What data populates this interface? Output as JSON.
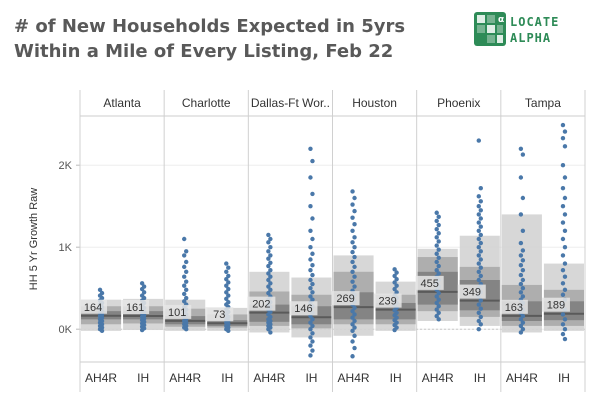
{
  "title_line1": "# of New Households Expected in 5yrs",
  "title_line2": "Within a Mile of Every Listing, Feb 22",
  "logo": {
    "line1": "LOCATE",
    "line2": "ALPHA",
    "color": "#2e8b57",
    "icon": "locate-alpha-grid-icon"
  },
  "chart_data": {
    "type": "box-dot",
    "ylabel": "HH 5 Yr Growth Raw",
    "ylim": [
      -400,
      2600
    ],
    "yticks": [
      {
        "v": 0,
        "label": "0K"
      },
      {
        "v": 1000,
        "label": "1K"
      },
      {
        "v": 2000,
        "label": "2K"
      }
    ],
    "facets": [
      "Atlanta",
      "Charlotte",
      "Dallas-Ft Wor..",
      "Houston",
      "Phoenix",
      "Tampa"
    ],
    "categories": [
      "AH4R",
      "IH"
    ],
    "colors": {
      "dots": "#4a78a9",
      "band_light": "#d3d3d3",
      "band_mid": "#aaaaaa",
      "band_dark": "#7f7f7f",
      "median": "#5a5a5a"
    },
    "groups": [
      {
        "facet": "Atlanta",
        "cat": "AH4R",
        "median": 164,
        "label": "164",
        "bands": [
          [
            -20,
            360
          ],
          [
            60,
            280
          ],
          [
            120,
            220
          ]
        ],
        "dots": [
          480,
          440,
          410,
          380,
          350,
          320,
          300,
          270,
          250,
          220,
          200,
          180,
          160,
          140,
          120,
          100,
          80,
          60,
          40,
          20,
          0,
          -20
        ]
      },
      {
        "facet": "Atlanta",
        "cat": "IH",
        "median": 161,
        "label": "161",
        "bands": [
          [
            -10,
            370
          ],
          [
            70,
            280
          ],
          [
            120,
            220
          ]
        ],
        "dots": [
          560,
          520,
          490,
          450,
          410,
          380,
          350,
          320,
          290,
          260,
          240,
          210,
          190,
          170,
          150,
          130,
          110,
          90,
          70,
          50,
          30,
          10,
          -10
        ]
      },
      {
        "facet": "Charlotte",
        "cat": "AH4R",
        "median": 101,
        "label": "101",
        "bands": [
          [
            -20,
            360
          ],
          [
            30,
            250
          ],
          [
            60,
            160
          ]
        ],
        "dots": [
          1100,
          950,
          900,
          820,
          760,
          700,
          640,
          580,
          530,
          480,
          430,
          380,
          340,
          300,
          270,
          240,
          210,
          180,
          150,
          120,
          100,
          80,
          60,
          40,
          20,
          0
        ]
      },
      {
        "facet": "Charlotte",
        "cat": "IH",
        "median": 73,
        "label": "73",
        "bands": [
          [
            -20,
            260
          ],
          [
            20,
            180
          ],
          [
            40,
            110
          ]
        ],
        "dots": [
          800,
          750,
          700,
          650,
          610,
          570,
          530,
          490,
          450,
          410,
          370,
          330,
          300,
          270,
          240,
          210,
          180,
          150,
          120,
          100,
          80,
          60,
          40,
          20,
          0,
          -20
        ]
      },
      {
        "facet": "Dallas-Ft Wor..",
        "cat": "AH4R",
        "median": 202,
        "label": "202",
        "bands": [
          [
            -40,
            700
          ],
          [
            40,
            460
          ],
          [
            90,
            300
          ]
        ],
        "dots": [
          1150,
          1100,
          1060,
          1000,
          950,
          900,
          860,
          810,
          770,
          720,
          680,
          640,
          600,
          560,
          520,
          480,
          440,
          400,
          360,
          330,
          300,
          270,
          240,
          210,
          180,
          150,
          120,
          100,
          80,
          60,
          40,
          20,
          0,
          -40
        ]
      },
      {
        "facet": "Dallas-Ft Wor..",
        "cat": "IH",
        "median": 146,
        "label": "146",
        "bands": [
          [
            -100,
            630
          ],
          [
            10,
            420
          ],
          [
            60,
            280
          ]
        ],
        "dots": [
          2200,
          2050,
          1850,
          1650,
          1500,
          1350,
          1200,
          1100,
          1000,
          920,
          850,
          780,
          720,
          660,
          600,
          550,
          500,
          450,
          400,
          360,
          320,
          280,
          240,
          200,
          160,
          120,
          80,
          40,
          0,
          -50,
          -100,
          -150,
          -200,
          -260,
          -320
        ]
      },
      {
        "facet": "Houston",
        "cat": "AH4R",
        "median": 269,
        "label": "269",
        "bands": [
          [
            -80,
            900
          ],
          [
            60,
            700
          ],
          [
            120,
            450
          ]
        ],
        "dots": [
          1680,
          1600,
          1520,
          1440,
          1360,
          1280,
          1200,
          1120,
          1060,
          1000,
          940,
          880,
          820,
          760,
          700,
          640,
          580,
          520,
          470,
          420,
          380,
          340,
          300,
          260,
          220,
          180,
          140,
          100,
          60,
          20,
          -20,
          -80,
          -150,
          -230,
          -330
        ]
      },
      {
        "facet": "Houston",
        "cat": "IH",
        "median": 239,
        "label": "239",
        "bands": [
          [
            -20,
            580
          ],
          [
            60,
            420
          ],
          [
            120,
            320
          ]
        ],
        "dots": [
          730,
          690,
          650,
          610,
          570,
          530,
          490,
          450,
          410,
          380,
          350,
          320,
          290,
          260,
          230,
          200,
          170,
          140,
          110,
          80,
          50,
          20,
          -10
        ]
      },
      {
        "facet": "Phoenix",
        "cat": "AH4R",
        "median": 455,
        "label": "455",
        "bands": [
          [
            100,
            980
          ],
          [
            220,
            880
          ],
          [
            300,
            700
          ]
        ],
        "dots": [
          1420,
          1370,
          1320,
          1270,
          1220,
          1170,
          1120,
          1070,
          1020,
          970,
          920,
          870,
          820,
          770,
          720,
          680,
          640,
          600,
          560,
          520,
          480,
          440,
          400,
          360,
          320,
          280,
          240,
          200,
          160,
          120
        ]
      },
      {
        "facet": "Phoenix",
        "cat": "IH",
        "median": 349,
        "label": "349",
        "bands": [
          [
            40,
            1140
          ],
          [
            150,
            760
          ],
          [
            230,
            600
          ]
        ],
        "dots": [
          2300,
          1720,
          1620,
          1560,
          1500,
          1450,
          1400,
          1350,
          1300,
          1250,
          1200,
          1150,
          1100,
          1050,
          1000,
          950,
          900,
          850,
          800,
          750,
          700,
          650,
          600,
          550,
          500,
          450,
          400,
          350,
          300,
          250,
          200,
          150,
          100,
          60,
          0
        ]
      },
      {
        "facet": "Tampa",
        "cat": "AH4R",
        "median": 163,
        "label": "163",
        "bands": [
          [
            -40,
            1400
          ],
          [
            40,
            540
          ],
          [
            100,
            340
          ]
        ],
        "dots": [
          2200,
          2130,
          1850,
          1600,
          1400,
          1200,
          1050,
          960,
          900,
          840,
          780,
          720,
          660,
          600,
          550,
          500,
          450,
          400,
          360,
          320,
          280,
          240,
          200,
          160,
          120,
          80,
          40,
          0,
          -40
        ]
      },
      {
        "facet": "Tampa",
        "cat": "IH",
        "median": 189,
        "label": "189",
        "bands": [
          [
            -20,
            800
          ],
          [
            40,
            480
          ],
          [
            110,
            340
          ]
        ],
        "dots": [
          2490,
          2410,
          2330,
          2230,
          2000,
          1850,
          1720,
          1600,
          1500,
          1400,
          1300,
          1200,
          1100,
          1000,
          900,
          800,
          720,
          640,
          560,
          480,
          420,
          360,
          300,
          240,
          180,
          120,
          60,
          0,
          -60,
          -120
        ]
      }
    ]
  }
}
